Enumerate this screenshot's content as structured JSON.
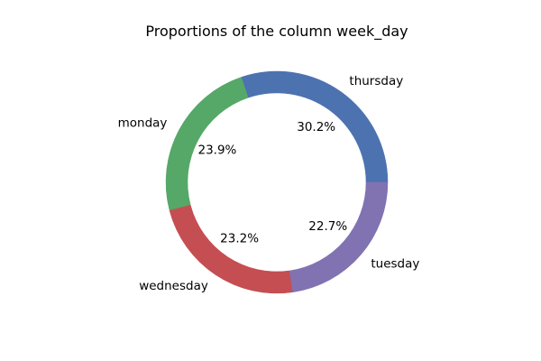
{
  "chart_data": {
    "type": "pie",
    "variant": "donut",
    "title": "Proportions of the column week_day",
    "start_angle_deg": 0,
    "direction": "counterclockwise",
    "slices": [
      {
        "label": "thursday",
        "value": 30.2,
        "pct_label": "30.2%",
        "color": "#4C72B0"
      },
      {
        "label": "monday",
        "value": 23.9,
        "pct_label": "23.9%",
        "color": "#55A868"
      },
      {
        "label": "wednesday",
        "value": 23.2,
        "pct_label": "23.2%",
        "color": "#C44E52"
      },
      {
        "label": "tuesday",
        "value": 22.7,
        "pct_label": "22.7%",
        "color": "#8172B2"
      }
    ]
  }
}
